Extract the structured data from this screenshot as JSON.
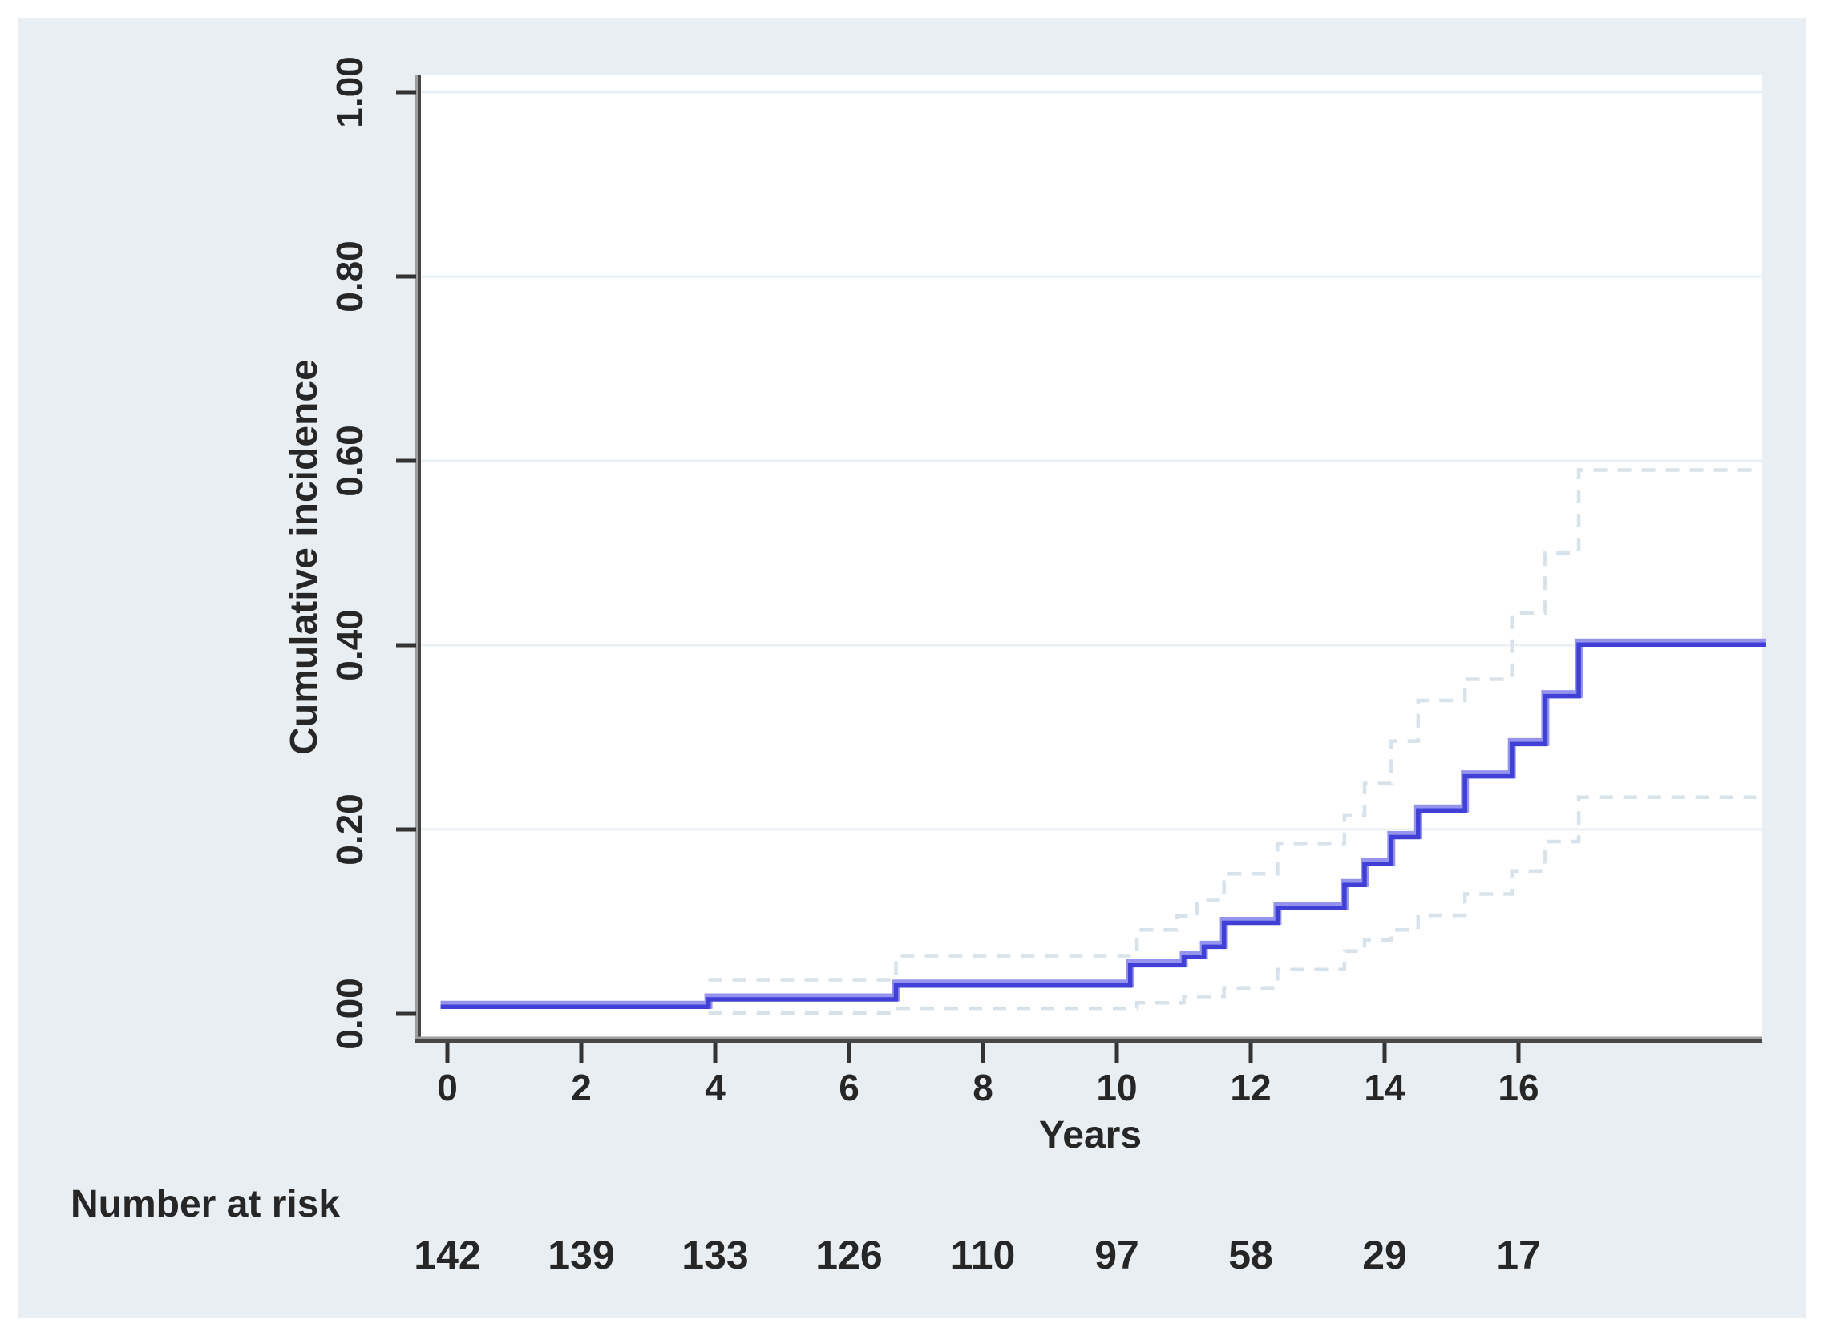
{
  "figure": {
    "y_axis_title": "Cumulative incidence",
    "x_axis_title": "Years",
    "at_risk_label": "Number at risk"
  },
  "colors": {
    "figure_background": "#e8eef1",
    "plot_background": "#ffffff",
    "gridline": "#e8f0f4",
    "axis_line_dark": "#474747",
    "axis_line_light": "#9e9e9e",
    "tick": "#333333",
    "text": "#262626",
    "main_line_core": "#4040d6",
    "main_line_halo": "#9494ef",
    "ci_dashed": "#d8e2ea"
  },
  "chart_data": {
    "type": "line",
    "subtype": "step-function-cumulative-incidence-with-confidence-bands",
    "title": "",
    "xlabel": "Years",
    "ylabel": "Cumulative incidence",
    "xlim": [
      -0.45,
      19.7
    ],
    "ylim": [
      -0.03,
      1.02
    ],
    "x_ticks": [
      0,
      2,
      4,
      6,
      8,
      10,
      12,
      14,
      16
    ],
    "y_ticks": [
      {
        "value": 0.0,
        "label": "0.00"
      },
      {
        "value": 0.2,
        "label": "0.20"
      },
      {
        "value": 0.4,
        "label": "0.40"
      },
      {
        "value": 0.6,
        "label": "0.60"
      },
      {
        "value": 0.8,
        "label": "0.80"
      },
      {
        "value": 1.0,
        "label": "1.00"
      }
    ],
    "grid": "horizontal",
    "legend": "none",
    "series": [
      {
        "name": "cumulative-incidence",
        "style": "solid-step",
        "steps": [
          [
            -0.1,
            0.009
          ],
          [
            3.9,
            0.017
          ],
          [
            6.7,
            0.032
          ],
          [
            10.2,
            0.054
          ],
          [
            11.0,
            0.063
          ],
          [
            11.3,
            0.074
          ],
          [
            11.6,
            0.1
          ],
          [
            12.4,
            0.116
          ],
          [
            13.4,
            0.141
          ],
          [
            13.7,
            0.164
          ],
          [
            14.1,
            0.193
          ],
          [
            14.5,
            0.222
          ],
          [
            15.2,
            0.259
          ],
          [
            15.9,
            0.294
          ],
          [
            16.4,
            0.346
          ],
          [
            16.9,
            0.402
          ],
          [
            19.7,
            0.402
          ]
        ]
      },
      {
        "name": "confidence-upper",
        "style": "dashed-step",
        "steps": [
          [
            3.9,
            0.037
          ],
          [
            6.7,
            0.063
          ],
          [
            10.3,
            0.091
          ],
          [
            10.9,
            0.106
          ],
          [
            11.2,
            0.123
          ],
          [
            11.6,
            0.152
          ],
          [
            12.4,
            0.185
          ],
          [
            13.4,
            0.215
          ],
          [
            13.7,
            0.25
          ],
          [
            14.1,
            0.296
          ],
          [
            14.5,
            0.34
          ],
          [
            15.2,
            0.363
          ],
          [
            15.9,
            0.435
          ],
          [
            16.4,
            0.5
          ],
          [
            16.9,
            0.59
          ],
          [
            19.55,
            0.59
          ]
        ]
      },
      {
        "name": "confidence-lower",
        "style": "dashed-step",
        "steps": [
          [
            3.9,
            0.001
          ],
          [
            6.7,
            0.006
          ],
          [
            10.3,
            0.012
          ],
          [
            11.0,
            0.019
          ],
          [
            11.6,
            0.028
          ],
          [
            12.4,
            0.048
          ],
          [
            13.4,
            0.068
          ],
          [
            13.7,
            0.08
          ],
          [
            14.1,
            0.091
          ],
          [
            14.5,
            0.107
          ],
          [
            15.2,
            0.13
          ],
          [
            15.9,
            0.155
          ],
          [
            16.4,
            0.187
          ],
          [
            16.9,
            0.235
          ],
          [
            19.55,
            0.235
          ]
        ]
      }
    ],
    "number_at_risk": {
      "label": "Number at risk",
      "years": [
        0,
        2,
        4,
        6,
        8,
        10,
        12,
        14,
        16
      ],
      "values": [
        142,
        139,
        133,
        126,
        110,
        97,
        58,
        29,
        17
      ]
    }
  }
}
